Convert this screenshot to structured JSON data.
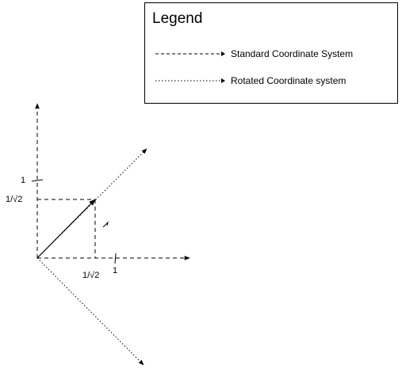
{
  "legend": {
    "title": "Legend",
    "items": [
      {
        "label": "Standard Coordinate System",
        "style": "dashed"
      },
      {
        "label": "Rotated Coordinate system",
        "style": "dotted"
      }
    ]
  },
  "axes": {
    "y_tick_one": "1",
    "y_tick_inv_sqrt2": "1/√2",
    "x_tick_inv_sqrt2": "1/√2",
    "x_tick_one": "1"
  },
  "colors": {
    "line": "#000000",
    "background": "#ffffff"
  }
}
